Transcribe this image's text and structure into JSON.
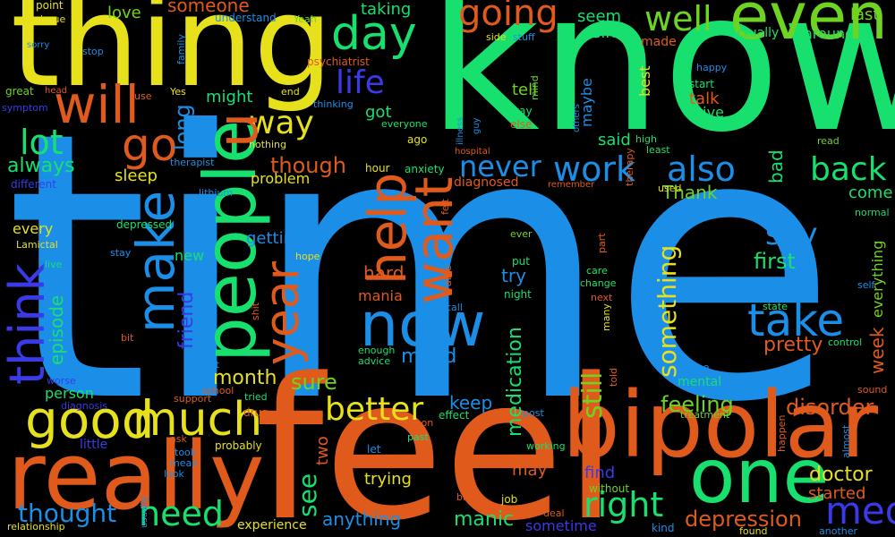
{
  "words": [
    {
      "text": "time",
      "color": "#1b8fe8"
    },
    {
      "text": "know",
      "color": "#18e06e"
    },
    {
      "text": "feel",
      "color": "#e05a1c"
    },
    {
      "text": "thing",
      "color": "#e6e11b"
    },
    {
      "text": "bipolar",
      "color": "#e05a1c"
    },
    {
      "text": "really",
      "color": "#e05a1c"
    },
    {
      "text": "people",
      "color": "#18e06e"
    },
    {
      "text": "one",
      "color": "#18e06e"
    },
    {
      "text": "even",
      "color": "#6fd321"
    },
    {
      "text": "now",
      "color": "#1b8fe8"
    },
    {
      "text": "want",
      "color": "#e05a1c"
    },
    {
      "text": "help",
      "color": "#e05a1c"
    },
    {
      "text": "make",
      "color": "#1b8fe8"
    },
    {
      "text": "much",
      "color": "#e6e11b"
    },
    {
      "text": "think",
      "color": "#3a3ae8"
    },
    {
      "text": "will",
      "color": "#e05a1c"
    },
    {
      "text": "good",
      "color": "#e6e11b"
    },
    {
      "text": "take",
      "color": "#1b8fe8"
    },
    {
      "text": "year",
      "color": "#e05a1c"
    },
    {
      "text": "going",
      "color": "#e05a1c"
    },
    {
      "text": "day",
      "color": "#18e06e"
    },
    {
      "text": "go",
      "color": "#e05a1c"
    },
    {
      "text": "need",
      "color": "#18e06e"
    },
    {
      "text": "life",
      "color": "#3a3ae8"
    },
    {
      "text": "way",
      "color": "#e6e11b"
    },
    {
      "text": "work",
      "color": "#1b8fe8"
    },
    {
      "text": "also",
      "color": "#1b8fe8"
    },
    {
      "text": "well",
      "color": "#6fd321"
    },
    {
      "text": "lot",
      "color": "#18e06e"
    },
    {
      "text": "never",
      "color": "#1b8fe8"
    },
    {
      "text": "back",
      "color": "#18e06e"
    },
    {
      "text": "better",
      "color": "#e6e11b"
    },
    {
      "text": "right",
      "color": "#18e06e"
    },
    {
      "text": "med",
      "color": "#3a3ae8"
    },
    {
      "text": "u",
      "color": "#e05a1c"
    },
    {
      "text": "say",
      "color": "#1b8fe8"
    },
    {
      "text": "something",
      "color": "#e6e11b"
    },
    {
      "text": "still",
      "color": "#6fd321"
    },
    {
      "text": "first",
      "color": "#18e06e"
    },
    {
      "text": "month",
      "color": "#e6e11b"
    },
    {
      "text": "thought",
      "color": "#1b8fe8"
    },
    {
      "text": "feeling",
      "color": "#6fd321"
    },
    {
      "text": "disorder",
      "color": "#e05a1c"
    },
    {
      "text": "depression",
      "color": "#e05a1c"
    },
    {
      "text": "doctor",
      "color": "#e6e11b"
    },
    {
      "text": "long",
      "color": "#1b8fe8"
    },
    {
      "text": "always",
      "color": "#18e06e"
    },
    {
      "text": "though",
      "color": "#e05a1c"
    },
    {
      "text": "manic",
      "color": "#18e06e"
    },
    {
      "text": "episode",
      "color": "#18e06e"
    },
    {
      "text": "friend",
      "color": "#3a3ae8"
    },
    {
      "text": "medication",
      "color": "#18e06e"
    },
    {
      "text": "pretty",
      "color": "#e05a1c"
    },
    {
      "text": "mood",
      "color": "#1b8fe8"
    },
    {
      "text": "sure",
      "color": "#6fd321"
    },
    {
      "text": "see",
      "color": "#18e06e"
    },
    {
      "text": "keep",
      "color": "#1b8fe8"
    },
    {
      "text": "anything",
      "color": "#1b8fe8"
    },
    {
      "text": "sleep",
      "color": "#e6e11b"
    },
    {
      "text": "getting",
      "color": "#1b8fe8"
    },
    {
      "text": "try",
      "color": "#1b8fe8"
    },
    {
      "text": "hard",
      "color": "#e05a1c"
    },
    {
      "text": "tell",
      "color": "#6fd321"
    },
    {
      "text": "week",
      "color": "#e05a1c"
    },
    {
      "text": "Thank",
      "color": "#6fd321"
    },
    {
      "text": "come",
      "color": "#18e06e"
    },
    {
      "text": "bad",
      "color": "#18e06e"
    },
    {
      "text": "started",
      "color": "#e05a1c"
    },
    {
      "text": "find",
      "color": "#3a3ae8"
    },
    {
      "text": "may",
      "color": "#e05a1c"
    },
    {
      "text": "two",
      "color": "#e05a1c"
    },
    {
      "text": "trying",
      "color": "#e6e11b"
    },
    {
      "text": "someone",
      "color": "#e05a1c"
    },
    {
      "text": "love",
      "color": "#6fd321"
    },
    {
      "text": "seem",
      "color": "#18e06e"
    },
    {
      "text": "last",
      "color": "#6fd321"
    },
    {
      "text": "around",
      "color": "#18e06e"
    },
    {
      "text": "actually",
      "color": "#18e06e"
    },
    {
      "text": "since",
      "color": "#18e06e"
    },
    {
      "text": "taking",
      "color": "#18e06e"
    },
    {
      "text": "made",
      "color": "#e05a1c"
    },
    {
      "text": "best",
      "color": "#e6e11b"
    },
    {
      "text": "maybe",
      "color": "#1b8fe8"
    },
    {
      "text": "talk",
      "color": "#e05a1c"
    },
    {
      "text": "give",
      "color": "#18e06e"
    },
    {
      "text": "might",
      "color": "#18e06e"
    },
    {
      "text": "got",
      "color": "#18e06e"
    },
    {
      "text": "said",
      "color": "#18e06e"
    },
    {
      "text": "problem",
      "color": "#e6e11b"
    },
    {
      "text": "person",
      "color": "#18e06e"
    },
    {
      "text": "every",
      "color": "#e6e11b"
    },
    {
      "text": "new",
      "color": "#18e06e"
    },
    {
      "text": "mania",
      "color": "#e05a1c"
    },
    {
      "text": "everything",
      "color": "#6fd321"
    },
    {
      "text": "mental",
      "color": "#18e06e"
    },
    {
      "text": "experience",
      "color": "#e6e11b"
    },
    {
      "text": "little",
      "color": "#3a3ae8"
    },
    {
      "text": "sometime",
      "color": "#3a3ae8"
    },
    {
      "text": "diagnosed",
      "color": "#e05a1c"
    },
    {
      "text": "psychiatrist",
      "color": "#e05a1c"
    },
    {
      "text": "anxiety",
      "color": "#18e06e"
    },
    {
      "text": "different",
      "color": "#3a3ae8"
    },
    {
      "text": "point",
      "color": "#e6e11b"
    },
    {
      "text": "issue",
      "color": "#e6e11b"
    },
    {
      "text": "understand",
      "color": "#1b8fe8"
    },
    {
      "text": "Yeah",
      "color": "#6fd321"
    },
    {
      "text": "side",
      "color": "#e6e11b"
    },
    {
      "text": "stuff",
      "color": "#1b8fe8"
    },
    {
      "text": "great",
      "color": "#6fd321"
    },
    {
      "text": "head",
      "color": "#e05a1c"
    },
    {
      "text": "use",
      "color": "#e05a1c"
    },
    {
      "text": "Yes",
      "color": "#e6e11b"
    },
    {
      "text": "end",
      "color": "#e6e11b"
    },
    {
      "text": "thinking",
      "color": "#1b8fe8"
    },
    {
      "text": "away",
      "color": "#18e06e"
    },
    {
      "text": "else",
      "color": "#e05a1c"
    },
    {
      "text": "everyone",
      "color": "#18e06e"
    },
    {
      "text": "ago",
      "color": "#e6e11b"
    },
    {
      "text": "happy",
      "color": "#1b8fe8"
    },
    {
      "text": "start",
      "color": "#18e06e"
    },
    {
      "text": "high",
      "color": "#18e06e"
    },
    {
      "text": "least",
      "color": "#18e06e"
    },
    {
      "text": "read",
      "color": "#6fd321"
    },
    {
      "text": "hour",
      "color": "#e6e11b"
    },
    {
      "text": "used",
      "color": "#e6e11b"
    },
    {
      "text": "therapist",
      "color": "#1b8fe8"
    },
    {
      "text": "lithium",
      "color": "#1b8fe8"
    },
    {
      "text": "nothing",
      "color": "#e6e11b"
    },
    {
      "text": "sorry",
      "color": "#1b8fe8"
    },
    {
      "text": "stop",
      "color": "#1b8fe8"
    },
    {
      "text": "family",
      "color": "#1b8fe8"
    },
    {
      "text": "symptom",
      "color": "#3a3ae8"
    },
    {
      "text": "alone",
      "color": "#1b8fe8"
    },
    {
      "text": "normal",
      "color": "#18e06e"
    },
    {
      "text": "remember",
      "color": "#e05a1c"
    },
    {
      "text": "depressed",
      "color": "#18e06e"
    },
    {
      "text": "Lamictal",
      "color": "#e6e11b"
    },
    {
      "text": "stay",
      "color": "#1b8fe8"
    },
    {
      "text": "live",
      "color": "#18e06e"
    },
    {
      "text": "hope",
      "color": "#e6e11b"
    },
    {
      "text": "ever",
      "color": "#6fd321"
    },
    {
      "text": "put",
      "color": "#18e06e"
    },
    {
      "text": "night",
      "color": "#18e06e"
    },
    {
      "text": "care",
      "color": "#18e06e"
    },
    {
      "text": "change",
      "color": "#18e06e"
    },
    {
      "text": "next",
      "color": "#e05a1c"
    },
    {
      "text": "call",
      "color": "#1b8fe8"
    },
    {
      "text": "self",
      "color": "#1b8fe8"
    },
    {
      "text": "state",
      "color": "#18e06e"
    },
    {
      "text": "control",
      "color": "#18e06e"
    },
    {
      "text": "bit",
      "color": "#e05a1c"
    },
    {
      "text": "shit",
      "color": "#e05a1c"
    },
    {
      "text": "went",
      "color": "#1b8fe8"
    },
    {
      "text": "school",
      "color": "#e05a1c"
    },
    {
      "text": "support",
      "color": "#e05a1c"
    },
    {
      "text": "tried",
      "color": "#18e06e"
    },
    {
      "text": "advice",
      "color": "#18e06e"
    },
    {
      "text": "enough",
      "color": "#18e06e"
    },
    {
      "text": "idea",
      "color": "#1b8fe8"
    },
    {
      "text": "told",
      "color": "#e05a1c"
    },
    {
      "text": "done",
      "color": "#1b8fe8"
    },
    {
      "text": "sound",
      "color": "#e05a1c"
    },
    {
      "text": "worse",
      "color": "#3a3ae8"
    },
    {
      "text": "diagnosis",
      "color": "#3a3ae8"
    },
    {
      "text": "drug",
      "color": "#e05a1c"
    },
    {
      "text": "place",
      "color": "#e05a1c"
    },
    {
      "text": "reason",
      "color": "#e05a1c"
    },
    {
      "text": "effect",
      "color": "#18e06e"
    },
    {
      "text": "post",
      "color": "#1b8fe8"
    },
    {
      "text": "treatment",
      "color": "#6fd321"
    },
    {
      "text": "ask",
      "color": "#e05a1c"
    },
    {
      "text": "probably",
      "color": "#e6e11b"
    },
    {
      "text": "took",
      "color": "#1b8fe8"
    },
    {
      "text": "mean",
      "color": "#1b8fe8"
    },
    {
      "text": "past",
      "color": "#18e06e"
    },
    {
      "text": "let",
      "color": "#1b8fe8"
    },
    {
      "text": "working",
      "color": "#18e06e"
    },
    {
      "text": "look",
      "color": "#1b8fe8"
    },
    {
      "text": "usually",
      "color": "#1b8fe8"
    },
    {
      "text": "brain",
      "color": "#e05a1c"
    },
    {
      "text": "job",
      "color": "#e6e11b"
    },
    {
      "text": "deal",
      "color": "#e05a1c"
    },
    {
      "text": "without",
      "color": "#6fd321"
    },
    {
      "text": "kind",
      "color": "#1b8fe8"
    },
    {
      "text": "found",
      "color": "#e6e11b"
    },
    {
      "text": "another",
      "color": "#1b8fe8"
    },
    {
      "text": "relationship",
      "color": "#e6e11b"
    },
    {
      "text": "happen",
      "color": "#e05a1c"
    },
    {
      "text": "almost",
      "color": "#1b8fe8"
    },
    {
      "text": "guy",
      "color": "#1b8fe8"
    },
    {
      "text": "illness",
      "color": "#1b8fe8"
    },
    {
      "text": "hospital",
      "color": "#e05a1c"
    },
    {
      "text": "mind",
      "color": "#6fd321"
    },
    {
      "text": "many",
      "color": "#e6e11b"
    },
    {
      "text": "felt",
      "color": "#e05a1c"
    },
    {
      "text": "able",
      "color": "#e05a1c"
    },
    {
      "text": "part",
      "color": "#e05a1c"
    },
    {
      "text": "therapy",
      "color": "#e05a1c"
    },
    {
      "text": "others",
      "color": "#1b8fe8"
    }
  ]
}
